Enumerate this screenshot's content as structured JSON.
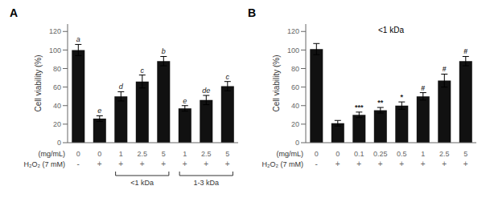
{
  "chart_data": [
    {
      "type": "bar",
      "title": "A",
      "ylabel": "Cell viability (%)",
      "xlabel": "(mg/mL)",
      "categories": [
        "0",
        "0",
        "1",
        "2.5",
        "5",
        "1",
        "2.5",
        "5"
      ],
      "xlabel2": "H₂O₂ (7 mM)",
      "categories2": [
        "-",
        "+",
        "+",
        "+",
        "+",
        "+",
        "+",
        "+"
      ],
      "values": [
        100,
        26,
        50,
        66,
        88,
        37,
        46,
        61
      ],
      "errors": [
        6,
        3,
        5,
        7,
        5,
        3,
        5,
        5
      ],
      "bar_labels": [
        "a",
        "e",
        "d",
        "c",
        "b",
        "e",
        "de",
        "c"
      ],
      "brackets": [
        {
          "start": 2,
          "end": 4,
          "label": "<1 kDa"
        },
        {
          "start": 5,
          "end": 7,
          "label": "1-3 kDa"
        }
      ],
      "color": "#111111",
      "ylim": [
        0,
        128
      ],
      "yticks": [
        0,
        20,
        40,
        60,
        80,
        100,
        120
      ]
    },
    {
      "type": "bar",
      "title": "B",
      "ylabel": "Cell viability (%)",
      "xlabel": "(mg/mL)",
      "categories": [
        "0",
        "0",
        "0.1",
        "0.25",
        "0.5",
        "1",
        "2.5",
        "5"
      ],
      "xlabel2": "H₂O₂ (7 mM)",
      "categories2": [
        "-",
        "+",
        "+",
        "+",
        "+",
        "+",
        "+",
        "+"
      ],
      "values": [
        101,
        21,
        30,
        35,
        40,
        50,
        67,
        88
      ],
      "errors": [
        6,
        3,
        3,
        3,
        4,
        4,
        7,
        5
      ],
      "bar_labels": [
        null,
        null,
        "***",
        "**",
        "*",
        "#",
        "#",
        "#"
      ],
      "annotation": "<1 kDa",
      "color": "#111111",
      "ylim": [
        0,
        128
      ],
      "yticks": [
        0,
        20,
        40,
        60,
        80,
        100,
        120
      ]
    }
  ]
}
